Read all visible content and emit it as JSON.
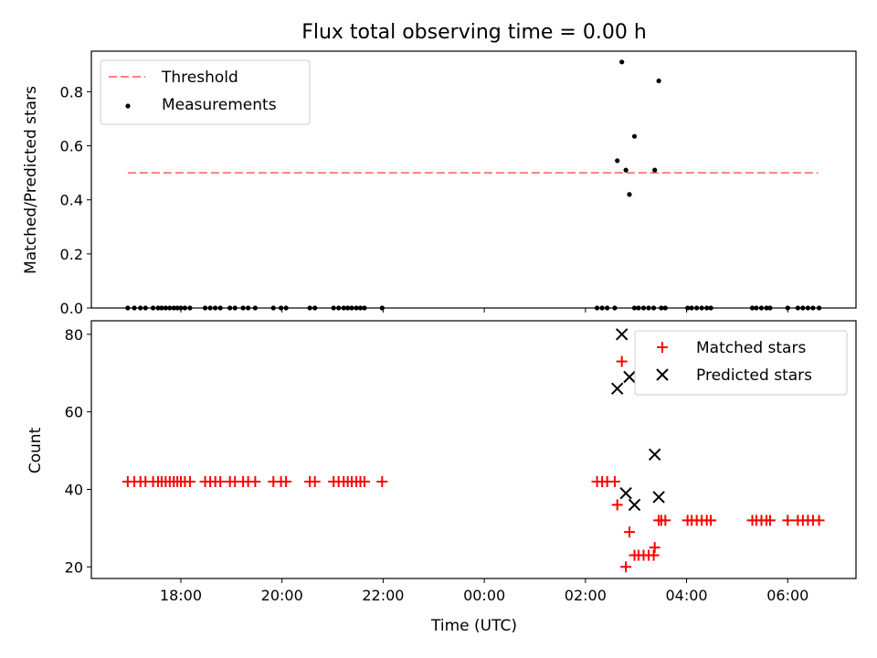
{
  "figure": {
    "title": "Flux total observing time = 0.00 h"
  },
  "chart_data": [
    {
      "type": "scatter",
      "ylabel": "Matched/Predicted stars",
      "xlabel": "",
      "xlim": [
        16.23,
        31.35
      ],
      "ylim": [
        0,
        0.95
      ],
      "yticks": [
        0.0,
        0.2,
        0.4,
        0.6,
        0.8
      ],
      "ytick_labels": [
        "0.0",
        "0.2",
        "0.4",
        "0.6",
        "0.8"
      ],
      "legend": {
        "position": "top-left",
        "entries": [
          {
            "label": "Threshold",
            "color": "#ff7f7f",
            "style": "dashed-line"
          },
          {
            "label": "Measurements",
            "color": "#000000",
            "style": "dot"
          }
        ]
      },
      "threshold": {
        "name": "Threshold",
        "y": 0.5,
        "x_start": 16.95,
        "x_end": 30.6,
        "color": "#ff7f7f"
      },
      "series": [
        {
          "name": "Measurements",
          "color": "#000000",
          "points": [
            [
              16.95,
              0
            ],
            [
              17.08,
              0
            ],
            [
              17.2,
              0
            ],
            [
              17.3,
              0
            ],
            [
              17.45,
              0
            ],
            [
              17.55,
              0
            ],
            [
              17.62,
              0
            ],
            [
              17.7,
              0
            ],
            [
              17.78,
              0
            ],
            [
              17.86,
              0
            ],
            [
              17.93,
              0
            ],
            [
              18.0,
              0
            ],
            [
              18.08,
              0
            ],
            [
              18.18,
              0
            ],
            [
              18.48,
              0
            ],
            [
              18.58,
              0
            ],
            [
              18.68,
              0
            ],
            [
              18.78,
              0
            ],
            [
              18.97,
              0
            ],
            [
              19.07,
              0
            ],
            [
              19.23,
              0
            ],
            [
              19.33,
              0
            ],
            [
              19.47,
              0
            ],
            [
              19.83,
              0
            ],
            [
              19.98,
              0
            ],
            [
              20.08,
              0
            ],
            [
              20.55,
              0
            ],
            [
              20.65,
              0
            ],
            [
              21.02,
              0
            ],
            [
              21.12,
              0
            ],
            [
              21.22,
              0
            ],
            [
              21.3,
              0
            ],
            [
              21.38,
              0
            ],
            [
              21.47,
              0
            ],
            [
              21.55,
              0
            ],
            [
              21.63,
              0
            ],
            [
              21.98,
              0
            ],
            [
              26.23,
              0
            ],
            [
              26.33,
              0
            ],
            [
              26.43,
              0
            ],
            [
              26.58,
              0
            ],
            [
              26.63,
              0.545
            ],
            [
              26.72,
              0.91
            ],
            [
              26.8,
              0.51
            ],
            [
              26.87,
              0.42
            ],
            [
              26.97,
              0.635
            ],
            [
              26.97,
              0
            ],
            [
              27.05,
              0
            ],
            [
              27.15,
              0
            ],
            [
              27.25,
              0
            ],
            [
              27.35,
              0
            ],
            [
              27.37,
              0.51
            ],
            [
              27.45,
              0.84
            ],
            [
              27.5,
              0
            ],
            [
              27.58,
              0
            ],
            [
              28.02,
              0
            ],
            [
              28.1,
              0
            ],
            [
              28.2,
              0
            ],
            [
              28.3,
              0
            ],
            [
              28.4,
              0
            ],
            [
              28.48,
              0
            ],
            [
              29.3,
              0
            ],
            [
              29.38,
              0
            ],
            [
              29.48,
              0
            ],
            [
              29.58,
              0
            ],
            [
              29.65,
              0
            ],
            [
              30.0,
              0
            ],
            [
              30.2,
              0
            ],
            [
              30.3,
              0
            ],
            [
              30.4,
              0
            ],
            [
              30.5,
              0
            ],
            [
              30.62,
              0
            ]
          ]
        }
      ]
    },
    {
      "type": "scatter",
      "ylabel": "Count",
      "xlabel": "Time (UTC)",
      "xlim": [
        16.23,
        31.35
      ],
      "ylim": [
        17,
        83.5
      ],
      "yticks": [
        20,
        40,
        60,
        80
      ],
      "ytick_labels": [
        "20",
        "40",
        "60",
        "80"
      ],
      "xticks": [
        18,
        20,
        22,
        24,
        26,
        28,
        30
      ],
      "xtick_labels": [
        "18:00",
        "20:00",
        "22:00",
        "00:00",
        "02:00",
        "04:00",
        "06:00"
      ],
      "legend": {
        "position": "top-right",
        "entries": [
          {
            "label": "Matched stars",
            "color": "#ff0000",
            "style": "plus"
          },
          {
            "label": "Predicted stars",
            "color": "#000000",
            "style": "cross"
          }
        ]
      },
      "series": [
        {
          "name": "Matched stars",
          "color": "#ff0000",
          "points": [
            [
              16.95,
              42
            ],
            [
              17.08,
              42
            ],
            [
              17.2,
              42
            ],
            [
              17.3,
              42
            ],
            [
              17.45,
              42
            ],
            [
              17.55,
              42
            ],
            [
              17.62,
              42
            ],
            [
              17.7,
              42
            ],
            [
              17.78,
              42
            ],
            [
              17.86,
              42
            ],
            [
              17.93,
              42
            ],
            [
              18.0,
              42
            ],
            [
              18.08,
              42
            ],
            [
              18.18,
              42
            ],
            [
              18.48,
              42
            ],
            [
              18.58,
              42
            ],
            [
              18.68,
              42
            ],
            [
              18.78,
              42
            ],
            [
              18.97,
              42
            ],
            [
              19.07,
              42
            ],
            [
              19.23,
              42
            ],
            [
              19.33,
              42
            ],
            [
              19.47,
              42
            ],
            [
              19.83,
              42
            ],
            [
              19.98,
              42
            ],
            [
              20.08,
              42
            ],
            [
              20.55,
              42
            ],
            [
              20.65,
              42
            ],
            [
              21.02,
              42
            ],
            [
              21.12,
              42
            ],
            [
              21.22,
              42
            ],
            [
              21.3,
              42
            ],
            [
              21.38,
              42
            ],
            [
              21.47,
              42
            ],
            [
              21.55,
              42
            ],
            [
              21.63,
              42
            ],
            [
              21.98,
              42
            ],
            [
              26.23,
              42
            ],
            [
              26.33,
              42
            ],
            [
              26.43,
              42
            ],
            [
              26.58,
              42
            ],
            [
              26.63,
              36
            ],
            [
              26.72,
              73
            ],
            [
              26.8,
              20
            ],
            [
              26.87,
              29
            ],
            [
              26.97,
              23
            ],
            [
              27.05,
              23
            ],
            [
              27.15,
              23
            ],
            [
              27.25,
              23
            ],
            [
              27.35,
              23
            ],
            [
              27.37,
              25
            ],
            [
              27.45,
              32
            ],
            [
              27.5,
              32
            ],
            [
              27.58,
              32
            ],
            [
              28.02,
              32
            ],
            [
              28.1,
              32
            ],
            [
              28.2,
              32
            ],
            [
              28.3,
              32
            ],
            [
              28.4,
              32
            ],
            [
              28.48,
              32
            ],
            [
              29.3,
              32
            ],
            [
              29.38,
              32
            ],
            [
              29.48,
              32
            ],
            [
              29.58,
              32
            ],
            [
              29.65,
              32
            ],
            [
              30.0,
              32
            ],
            [
              30.2,
              32
            ],
            [
              30.3,
              32
            ],
            [
              30.4,
              32
            ],
            [
              30.5,
              32
            ],
            [
              30.62,
              32
            ]
          ]
        },
        {
          "name": "Predicted stars",
          "color": "#000000",
          "points": [
            [
              26.63,
              66
            ],
            [
              26.72,
              80
            ],
            [
              26.8,
              39
            ],
            [
              26.87,
              69
            ],
            [
              26.97,
              36
            ],
            [
              27.37,
              49
            ],
            [
              27.45,
              38
            ]
          ]
        }
      ]
    }
  ]
}
